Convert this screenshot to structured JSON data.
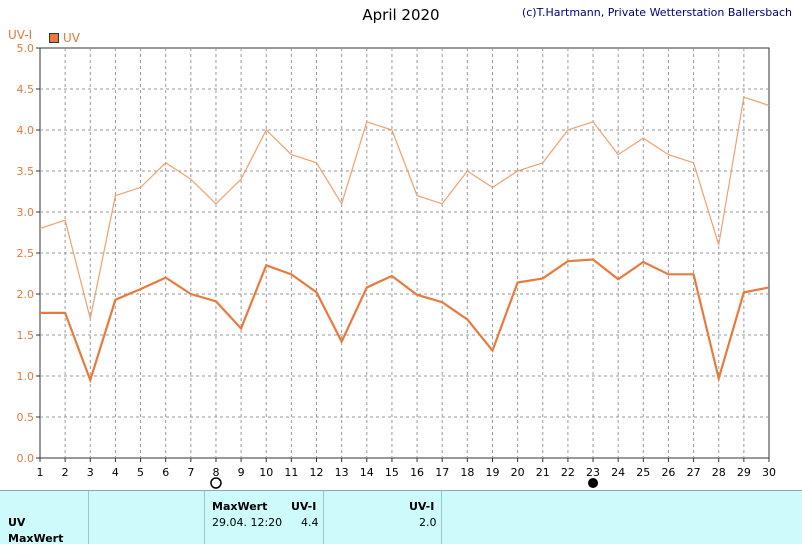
{
  "header": {
    "title": "April 2020",
    "copyright": "(c)T.Hartmann, Private Wetterstation Ballersbach",
    "y_unit": "UV-I"
  },
  "legend": {
    "label": "UV"
  },
  "colors": {
    "max_line": "#f0a070",
    "avg_line": "#e87a3d",
    "grid": "#999999",
    "panel_bg": "#cdfafa"
  },
  "chart_data": {
    "type": "line",
    "x": [
      1,
      2,
      3,
      4,
      5,
      6,
      7,
      8,
      9,
      10,
      11,
      12,
      13,
      14,
      15,
      16,
      17,
      18,
      19,
      20,
      21,
      22,
      23,
      24,
      25,
      26,
      27,
      28,
      29,
      30
    ],
    "ylim": [
      0,
      5
    ],
    "yticks": [
      "0.0",
      "0.5",
      "1.0",
      "1.5",
      "2.0",
      "2.5",
      "3.0",
      "3.5",
      "4.0",
      "4.5",
      "5.0"
    ],
    "grid": true,
    "series": [
      {
        "values": [
          2.8,
          2.9,
          1.7,
          3.2,
          3.3,
          3.6,
          3.4,
          3.1,
          3.4,
          4.0,
          3.7,
          3.6,
          3.1,
          4.1,
          4.0,
          3.2,
          3.1,
          3.5,
          3.3,
          3.5,
          3.6,
          4.0,
          4.1,
          3.7,
          3.9,
          3.7,
          3.6,
          2.6,
          4.4,
          4.3
        ]
      },
      {
        "name": "UV",
        "values": [
          1.77,
          1.77,
          0.95,
          1.93,
          2.06,
          2.2,
          2.0,
          1.91,
          1.58,
          2.35,
          2.24,
          2.02,
          1.42,
          2.08,
          2.22,
          1.99,
          1.9,
          1.69,
          1.31,
          2.14,
          2.19,
          2.4,
          2.42,
          2.18,
          2.39,
          2.24,
          2.24,
          0.97,
          2.02,
          2.08
        ]
      }
    ],
    "moon_phases": [
      {
        "day": 8,
        "phase": "full"
      },
      {
        "day": 23,
        "phase": "new"
      }
    ]
  },
  "panel": {
    "row_labels": [
      "UV",
      "MaxWert"
    ],
    "max_title": "MaxWert",
    "max_unit": "UV-I",
    "max_date": "29.04.  12:20",
    "max_value": "4.4",
    "avg_unit": "UV-I",
    "avg_value": "2.0"
  }
}
